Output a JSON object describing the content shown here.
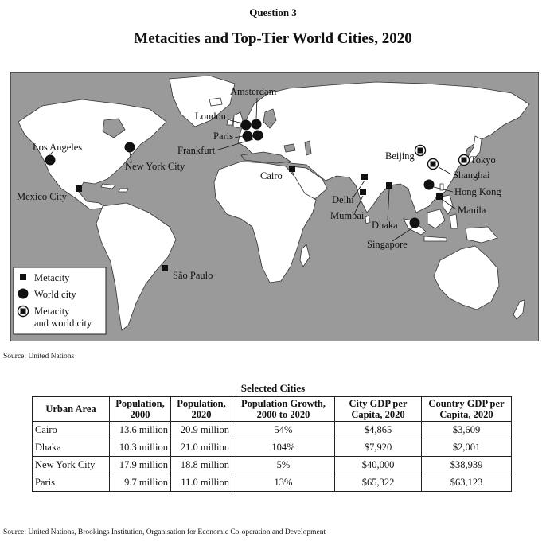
{
  "header": {
    "question_label": "Question 3",
    "map_title": "Metacities and Top-Tier World Cities, 2020"
  },
  "map": {
    "legend": [
      {
        "symbol": "square",
        "label_lines": [
          "Metacity"
        ]
      },
      {
        "symbol": "circle",
        "label_lines": [
          "World city"
        ]
      },
      {
        "symbol": "circle-square",
        "label_lines": [
          "Metacity",
          "and world city"
        ]
      }
    ],
    "cities": [
      {
        "name": "Los Angeles",
        "type": "world"
      },
      {
        "name": "New York City",
        "type": "world"
      },
      {
        "name": "Mexico City",
        "type": "metacity"
      },
      {
        "name": "São Paulo",
        "type": "metacity"
      },
      {
        "name": "London",
        "type": "world"
      },
      {
        "name": "Amsterdam",
        "type": "world"
      },
      {
        "name": "Paris",
        "type": "world"
      },
      {
        "name": "Frankfurt",
        "type": "world"
      },
      {
        "name": "Cairo",
        "type": "metacity"
      },
      {
        "name": "Delhi",
        "type": "metacity"
      },
      {
        "name": "Mumbai",
        "type": "metacity"
      },
      {
        "name": "Dhaka",
        "type": "metacity"
      },
      {
        "name": "Beijing",
        "type": "both"
      },
      {
        "name": "Tokyo",
        "type": "both"
      },
      {
        "name": "Shanghai",
        "type": "both"
      },
      {
        "name": "Hong Kong",
        "type": "world"
      },
      {
        "name": "Manila",
        "type": "metacity"
      },
      {
        "name": "Singapore",
        "type": "world"
      }
    ],
    "source": "Source: United Nations"
  },
  "table": {
    "caption": "Selected Cities",
    "headers": [
      "Urban Area",
      "Population, 2000",
      "Population, 2020",
      "Population Growth, 2000 to 2020",
      "City GDP per Capita, 2020",
      "Country GDP per Capita, 2020"
    ],
    "rows": [
      [
        "Cairo",
        "13.6 million",
        "20.9 million",
        "54%",
        "$4,865",
        "$3,609"
      ],
      [
        "Dhaka",
        "10.3 million",
        "21.0 million",
        "104%",
        "$7,920",
        "$2,001"
      ],
      [
        "New York City",
        "17.9 million",
        "18.8 million",
        "5%",
        "$40,000",
        "$38,939"
      ],
      [
        "Paris",
        "9.7 million",
        "11.0 million",
        "13%",
        "$65,322",
        "$63,123"
      ]
    ],
    "source": "Source: United Nations, Brookings Institution, Organisation for Economic Co-operation and Development"
  }
}
